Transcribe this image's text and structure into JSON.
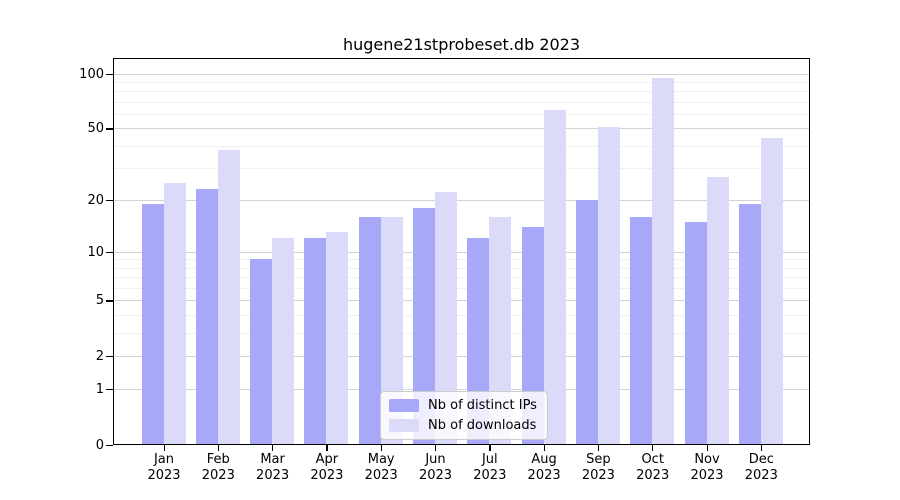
{
  "title": "hugene21stprobeset.db 2023",
  "chart_data": {
    "type": "bar",
    "title": "hugene21stprobeset.db 2023",
    "year": "2023",
    "categories": [
      "Jan",
      "Feb",
      "Mar",
      "Apr",
      "May",
      "Jun",
      "Jul",
      "Aug",
      "Sep",
      "Oct",
      "Nov",
      "Dec"
    ],
    "series": [
      {
        "name": "Nb of distinct IPs",
        "color": "#a8a8f8",
        "values": [
          19,
          23,
          9,
          12,
          16,
          18,
          12,
          14,
          20,
          16,
          15,
          19
        ]
      },
      {
        "name": "Nb of downloads",
        "color": "#dbdbf9",
        "values": [
          25,
          38,
          12,
          13,
          16,
          22,
          16,
          63,
          51,
          95,
          27,
          44
        ]
      }
    ],
    "xlabel": "",
    "ylabel": "",
    "yscale": "log1p",
    "ylim": [
      0,
      101
    ],
    "yticks": [
      100,
      50,
      20,
      10,
      5,
      2,
      1,
      0
    ],
    "minor_gridlines": [
      3,
      4,
      6,
      7,
      8,
      9,
      30,
      40,
      60,
      70,
      80,
      90
    ],
    "grid": true,
    "legend_position": "lower center"
  },
  "colors": {
    "major_grid": "#d4d4d4",
    "minor_grid": "#f0f0f0",
    "axis": "#000000",
    "legend_border": "#cccccc"
  }
}
